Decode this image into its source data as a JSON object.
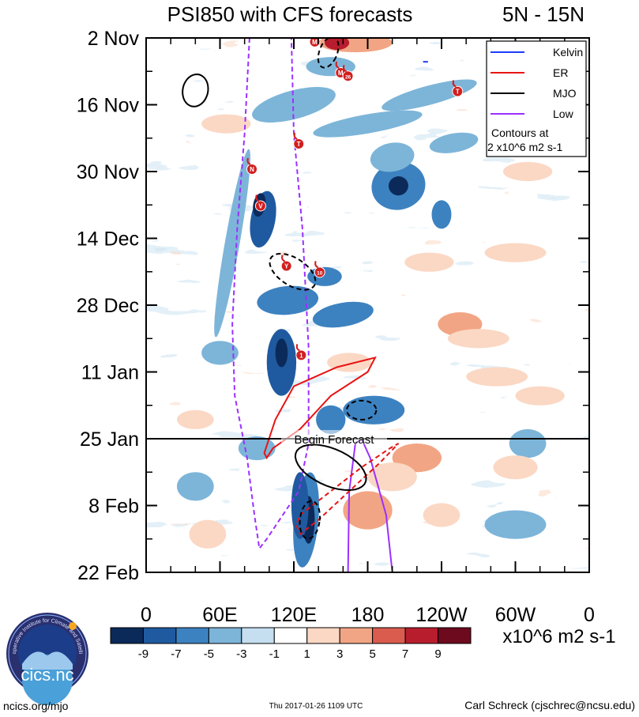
{
  "chart_data": {
    "type": "heatmap",
    "title": "PSI850 with CFS forecasts",
    "region": "5N - 15N",
    "x_ticks": [
      {
        "label": "0",
        "lon": 0
      },
      {
        "label": "60E",
        "lon": 60
      },
      {
        "label": "120E",
        "lon": 120
      },
      {
        "label": "180",
        "lon": 180
      },
      {
        "label": "120W",
        "lon": 240
      },
      {
        "label": "60W",
        "lon": 300
      },
      {
        "label": "0",
        "lon": 360
      }
    ],
    "xlim": [
      0,
      360
    ],
    "y_ticks": [
      {
        "label": "2 Nov",
        "day": 0
      },
      {
        "label": "16 Nov",
        "day": 14
      },
      {
        "label": "30 Nov",
        "day": 28
      },
      {
        "label": "14 Dec",
        "day": 42
      },
      {
        "label": "28 Dec",
        "day": 56
      },
      {
        "label": "11 Jan",
        "day": 70
      },
      {
        "label": "25 Jan",
        "day": 84
      },
      {
        "label": "8 Feb",
        "day": 98
      },
      {
        "label": "22 Feb",
        "day": 112
      }
    ],
    "ylim": [
      0,
      112
    ],
    "forecast": {
      "label": "Begin Forecast",
      "day": 84
    },
    "colorbar": {
      "levels": [
        "-9",
        "-7",
        "-5",
        "-3",
        "-1",
        "1",
        "3",
        "5",
        "7",
        "9"
      ],
      "colors": [
        "#0b2a5a",
        "#1f5aa0",
        "#3d82c0",
        "#7db5d9",
        "#c5dff0",
        "#ffffff",
        "#fbd8c4",
        "#f2a584",
        "#d95c4f",
        "#b81d2e",
        "#6e0a1e"
      ],
      "units": "x10^6 m2 s-1"
    },
    "legend": {
      "entries": [
        {
          "name": "Kelvin",
          "color": "#1e3cff"
        },
        {
          "name": "ER",
          "color": "#e81414"
        },
        {
          "name": "MJO",
          "color": "#000000"
        },
        {
          "name": "Low",
          "color": "#9b30ff"
        }
      ],
      "contour_note_1": "Contours at",
      "contour_note_2": "2 x10^6 m2 s-1"
    },
    "storms": [
      {
        "id": "M",
        "lon": 137,
        "day": 0.8
      },
      {
        "id": "M",
        "lon": 158,
        "day": 7.3
      },
      {
        "id": "26",
        "lon": 164,
        "day": 8.0
      },
      {
        "id": "T",
        "lon": 253,
        "day": 11.2
      },
      {
        "id": "T",
        "lon": 124,
        "day": 22.2
      },
      {
        "id": "N",
        "lon": 86,
        "day": 27.5
      },
      {
        "id": "V",
        "lon": 93,
        "day": 35.2
      },
      {
        "id": "Y",
        "lon": 114,
        "day": 47.8
      },
      {
        "id": "10",
        "lon": 141,
        "day": 49.1
      },
      {
        "id": "1",
        "lon": 126,
        "day": 66.5
      }
    ]
  },
  "footer": {
    "site": "ncics.org/mjo",
    "timestamp": "Thu 2017-01-26 1109 UTC",
    "author": "Carl Schreck (cjschrec@ncsu.edu)",
    "logo_text": "cics.nc",
    "logo_ring": "Cooperative Institute for Climate and Satellites"
  }
}
